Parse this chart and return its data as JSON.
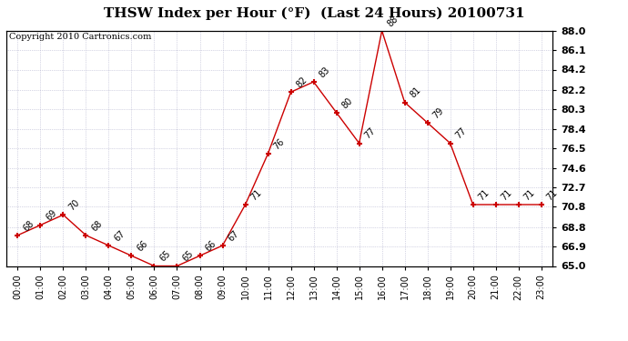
{
  "title": "THSW Index per Hour (°F)  (Last 24 Hours) 20100731",
  "copyright": "Copyright 2010 Cartronics.com",
  "hours": [
    0,
    1,
    2,
    3,
    4,
    5,
    6,
    7,
    8,
    9,
    10,
    11,
    12,
    13,
    14,
    15,
    16,
    17,
    18,
    19,
    20,
    21,
    22,
    23
  ],
  "values": [
    68,
    69,
    70,
    68,
    67,
    66,
    65,
    65,
    66,
    67,
    71,
    76,
    82,
    83,
    80,
    77,
    88,
    81,
    79,
    77,
    71,
    71,
    71,
    71
  ],
  "line_color": "#cc0000",
  "marker_color": "#cc0000",
  "bg_color": "#ffffff",
  "grid_color": "#b0b0cc",
  "ylim_min": 65.0,
  "ylim_max": 88.0,
  "yticks_right": [
    65.0,
    66.9,
    68.8,
    70.8,
    72.7,
    74.6,
    76.5,
    78.4,
    80.3,
    82.2,
    84.2,
    86.1,
    88.0
  ],
  "x_labels": [
    "00:00",
    "01:00",
    "02:00",
    "03:00",
    "04:00",
    "05:00",
    "06:00",
    "07:00",
    "08:00",
    "09:00",
    "10:00",
    "11:00",
    "12:00",
    "13:00",
    "14:00",
    "15:00",
    "16:00",
    "17:00",
    "18:00",
    "19:00",
    "20:00",
    "21:00",
    "22:00",
    "23:00"
  ]
}
